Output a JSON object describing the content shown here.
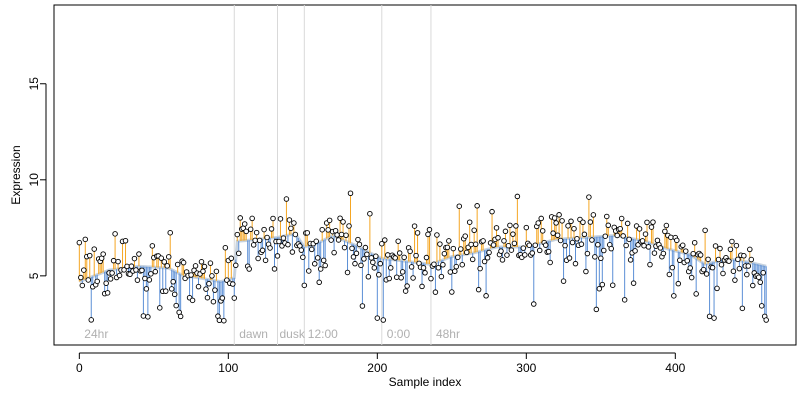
{
  "chart_data": {
    "type": "scatter",
    "xlabel": "Sample index",
    "ylabel": "Expression",
    "xlim": [
      -17,
      481
    ],
    "ylim": [
      1.4,
      19.1
    ],
    "x_ticks": [
      0,
      100,
      200,
      300,
      400
    ],
    "y_ticks": [
      5,
      10,
      15
    ],
    "grid": false,
    "legend": "none",
    "phases": [
      {
        "label": "24hr",
        "x": 2
      },
      {
        "label": "dawn",
        "x": 106
      },
      {
        "label": "dusk",
        "x": 133
      },
      {
        "label": "12:00",
        "x": 152
      },
      {
        "label": "0:00",
        "x": 205
      },
      {
        "label": "48hr",
        "x": 238
      }
    ],
    "boundaries": [
      104,
      133,
      151,
      203,
      236
    ],
    "n_points": 462,
    "baseline_anchors": [
      [
        0,
        4.7
      ],
      [
        20,
        5.3
      ],
      [
        40,
        5.5
      ],
      [
        60,
        5.4
      ],
      [
        70,
        5.0
      ],
      [
        80,
        4.9
      ],
      [
        95,
        4.7
      ],
      [
        104,
        4.9
      ],
      [
        106,
        6.8
      ],
      [
        120,
        6.9
      ],
      [
        133,
        7.0
      ],
      [
        145,
        7.2
      ],
      [
        151,
        6.5
      ],
      [
        160,
        6.7
      ],
      [
        170,
        7.1
      ],
      [
        185,
        6.6
      ],
      [
        195,
        6.2
      ],
      [
        203,
        5.9
      ],
      [
        215,
        5.8
      ],
      [
        236,
        5.6
      ],
      [
        250,
        6.0
      ],
      [
        265,
        6.2
      ],
      [
        280,
        6.5
      ],
      [
        300,
        6.5
      ],
      [
        320,
        6.9
      ],
      [
        340,
        7.0
      ],
      [
        360,
        7.1
      ],
      [
        380,
        6.8
      ],
      [
        395,
        6.4
      ],
      [
        410,
        6.1
      ],
      [
        420,
        5.6
      ],
      [
        435,
        5.9
      ],
      [
        450,
        5.7
      ],
      [
        461,
        5.5
      ]
    ],
    "point_color": "#ffffff",
    "point_stroke": "#000000",
    "above_color": "#f5a623",
    "below_color": "#5b8fd6",
    "baseline_color": "#b9c8d8",
    "boundary_color": "#d9d9d9"
  }
}
